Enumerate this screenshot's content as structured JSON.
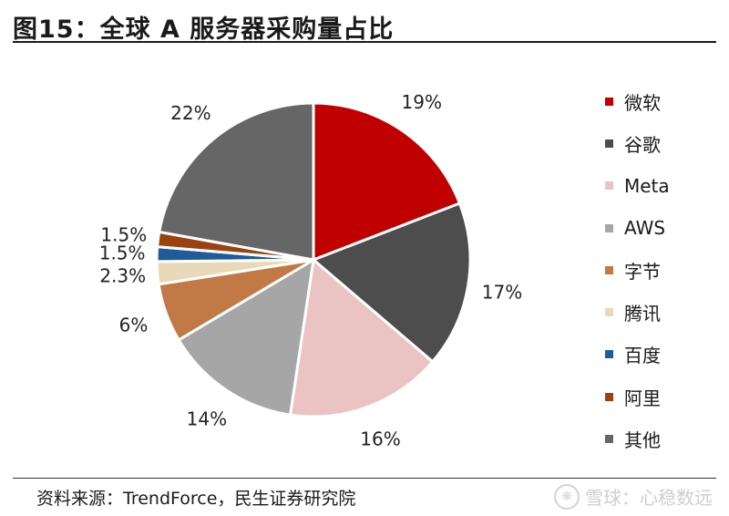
{
  "title": "图15：全球 A 服务器采购量占比",
  "source": "资料来源：TrendForce，民生证券研究院",
  "watermark": "雪球：心稳数远",
  "chart_data": {
    "type": "pie",
    "title": "图15：全球 A 服务器采购量占比",
    "start_angle": "12 o'clock, clockwise",
    "legend_position": "right",
    "slices": [
      {
        "label": "微软",
        "value": 19,
        "display": "19%",
        "color": "#c00000"
      },
      {
        "label": "谷歌",
        "value": 17,
        "display": "17%",
        "color": "#4d4d4d"
      },
      {
        "label": "Meta",
        "value": 16,
        "display": "16%",
        "color": "#ebc3c3"
      },
      {
        "label": "AWS",
        "value": 14,
        "display": "14%",
        "color": "#a6a6a6"
      },
      {
        "label": "字节",
        "value": 6,
        "display": "6%",
        "color": "#c17a45"
      },
      {
        "label": "腾讯",
        "value": 2.3,
        "display": "2.3%",
        "color": "#ead9b8"
      },
      {
        "label": "百度",
        "value": 1.5,
        "display": "1.5%",
        "color": "#1f5c9a"
      },
      {
        "label": "阿里",
        "value": 1.5,
        "display": "1.5%",
        "color": "#9c4110"
      },
      {
        "label": "其他",
        "value": 22,
        "display": "22%",
        "color": "#666666"
      }
    ]
  }
}
